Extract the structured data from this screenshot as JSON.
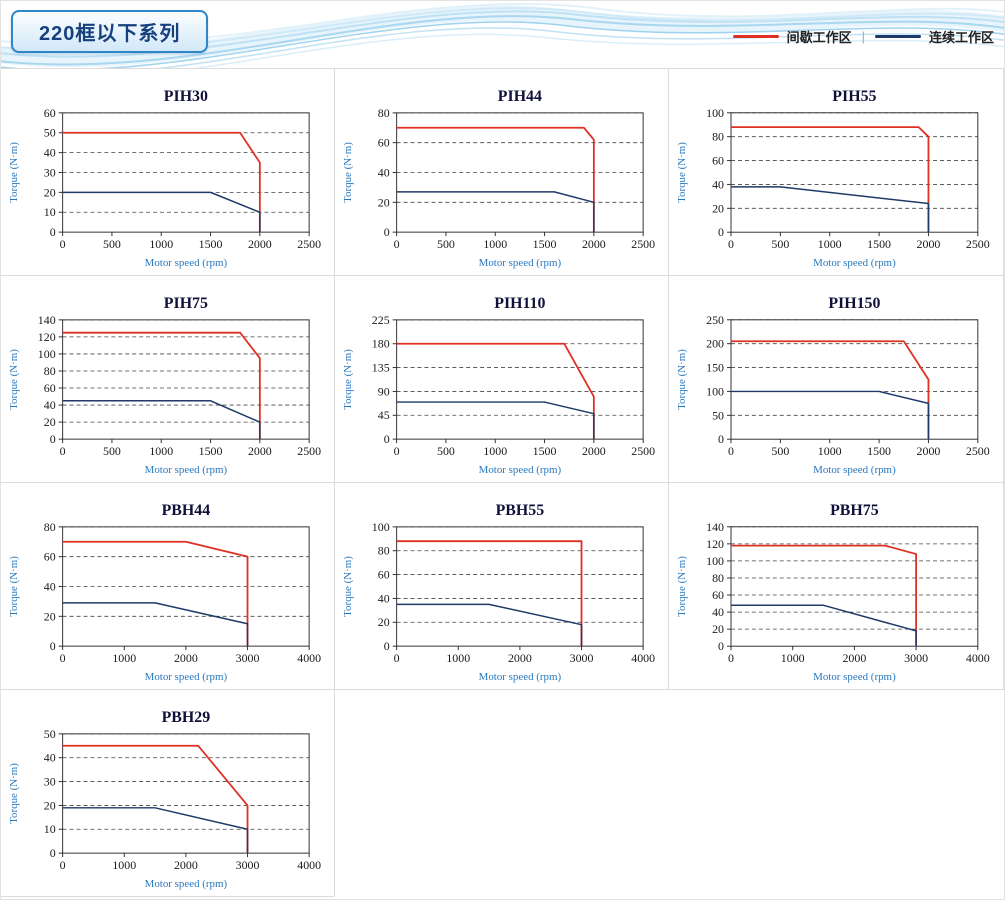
{
  "page": {
    "title": "220框以下系列"
  },
  "legend": {
    "separator": "|",
    "items": [
      {
        "label": "间歇工作区",
        "color_key": "intermittent"
      },
      {
        "label": "连续工作区",
        "color_key": "continuous"
      }
    ]
  },
  "colors": {
    "intermittent": "#e03024",
    "continuous": "#1f3a68"
  },
  "chart_data": [
    {
      "type": "line",
      "title": "PIH30",
      "xlabel": "Motor speed (rpm)",
      "ylabel": "Torque (N·m)",
      "xlim": [
        0,
        2500
      ],
      "xticks": [
        0,
        500,
        1000,
        1500,
        2000,
        2500
      ],
      "ylim": [
        0,
        60
      ],
      "yticks": [
        0,
        10,
        20,
        30,
        40,
        50,
        60
      ],
      "grid": "dashed-horizontal",
      "series": [
        {
          "name": "间歇工作区",
          "color": "intermittent",
          "points": [
            [
              0,
              50
            ],
            [
              1800,
              50
            ],
            [
              2000,
              35
            ],
            [
              2000,
              0
            ]
          ]
        },
        {
          "name": "连续工作区",
          "color": "continuous",
          "points": [
            [
              0,
              20
            ],
            [
              1500,
              20
            ],
            [
              2000,
              10
            ],
            [
              2000,
              0
            ]
          ]
        }
      ]
    },
    {
      "type": "line",
      "title": "PIH44",
      "xlabel": "Motor speed (rpm)",
      "ylabel": "Torque (N·m)",
      "xlim": [
        0,
        2500
      ],
      "xticks": [
        0,
        500,
        1000,
        1500,
        2000,
        2500
      ],
      "ylim": [
        0,
        80
      ],
      "yticks": [
        0,
        20,
        40,
        60,
        80
      ],
      "grid": "dashed-horizontal",
      "series": [
        {
          "name": "间歇工作区",
          "color": "intermittent",
          "points": [
            [
              0,
              70
            ],
            [
              1900,
              70
            ],
            [
              2000,
              62
            ],
            [
              2000,
              0
            ]
          ]
        },
        {
          "name": "连续工作区",
          "color": "continuous",
          "points": [
            [
              0,
              27
            ],
            [
              1600,
              27
            ],
            [
              2000,
              20
            ],
            [
              2000,
              0
            ]
          ]
        }
      ]
    },
    {
      "type": "line",
      "title": "PIH55",
      "xlabel": "Motor speed (rpm)",
      "ylabel": "Torque (N·m)",
      "xlim": [
        0,
        2500
      ],
      "xticks": [
        0,
        500,
        1000,
        1500,
        2000,
        2500
      ],
      "ylim": [
        0,
        100
      ],
      "yticks": [
        0,
        20,
        40,
        60,
        80,
        100
      ],
      "grid": "dashed-horizontal",
      "series": [
        {
          "name": "间歇工作区",
          "color": "intermittent",
          "points": [
            [
              0,
              88
            ],
            [
              1900,
              88
            ],
            [
              2000,
              80
            ],
            [
              2000,
              0
            ]
          ]
        },
        {
          "name": "连续工作区",
          "color": "continuous",
          "points": [
            [
              0,
              38
            ],
            [
              500,
              38
            ],
            [
              2000,
              24
            ],
            [
              2000,
              0
            ]
          ]
        }
      ]
    },
    {
      "type": "line",
      "title": "PIH75",
      "xlabel": "Motor speed (rpm)",
      "ylabel": "Torque (N·m)",
      "xlim": [
        0,
        2500
      ],
      "xticks": [
        0,
        500,
        1000,
        1500,
        2000,
        2500
      ],
      "ylim": [
        0,
        140
      ],
      "yticks": [
        0,
        20,
        40,
        60,
        80,
        100,
        120,
        140
      ],
      "grid": "dashed-horizontal",
      "series": [
        {
          "name": "间歇工作区",
          "color": "intermittent",
          "points": [
            [
              0,
              125
            ],
            [
              1800,
              125
            ],
            [
              2000,
              95
            ],
            [
              2000,
              0
            ]
          ]
        },
        {
          "name": "连续工作区",
          "color": "continuous",
          "points": [
            [
              0,
              45
            ],
            [
              1500,
              45
            ],
            [
              2000,
              20
            ],
            [
              2000,
              0
            ]
          ]
        }
      ]
    },
    {
      "type": "line",
      "title": "PIH110",
      "xlabel": "Motor speed (rpm)",
      "ylabel": "Torque (N·m)",
      "xlim": [
        0,
        2500
      ],
      "xticks": [
        0,
        500,
        1000,
        1500,
        2000,
        2500
      ],
      "ylim": [
        0,
        225
      ],
      "yticks": [
        0,
        45,
        90,
        135,
        180,
        225
      ],
      "grid": "dashed-horizontal",
      "series": [
        {
          "name": "间歇工作区",
          "color": "intermittent",
          "points": [
            [
              0,
              180
            ],
            [
              1700,
              180
            ],
            [
              2000,
              80
            ],
            [
              2000,
              0
            ]
          ]
        },
        {
          "name": "连续工作区",
          "color": "continuous",
          "points": [
            [
              0,
              70
            ],
            [
              1500,
              70
            ],
            [
              2000,
              48
            ],
            [
              2000,
              0
            ]
          ]
        }
      ]
    },
    {
      "type": "line",
      "title": "PIH150",
      "xlabel": "Motor speed (rpm)",
      "ylabel": "Torque (N·m)",
      "xlim": [
        0,
        2500
      ],
      "xticks": [
        0,
        500,
        1000,
        1500,
        2000,
        2500
      ],
      "ylim": [
        0,
        250
      ],
      "yticks": [
        0,
        50,
        100,
        150,
        200,
        250
      ],
      "grid": "dashed-horizontal",
      "series": [
        {
          "name": "间歇工作区",
          "color": "intermittent",
          "points": [
            [
              0,
              205
            ],
            [
              1750,
              205
            ],
            [
              2000,
              125
            ],
            [
              2000,
              0
            ]
          ]
        },
        {
          "name": "连续工作区",
          "color": "continuous",
          "points": [
            [
              0,
              100
            ],
            [
              1500,
              100
            ],
            [
              2000,
              75
            ],
            [
              2000,
              0
            ]
          ]
        }
      ]
    },
    {
      "type": "line",
      "title": "PBH44",
      "xlabel": "Motor speed (rpm)",
      "ylabel": "Torque (N·m)",
      "xlim": [
        0,
        4000
      ],
      "xticks": [
        0,
        1000,
        2000,
        3000,
        4000
      ],
      "ylim": [
        0,
        80
      ],
      "yticks": [
        0,
        20,
        40,
        60,
        80
      ],
      "grid": "dashed-horizontal",
      "series": [
        {
          "name": "间歇工作区",
          "color": "intermittent",
          "points": [
            [
              0,
              70
            ],
            [
              2000,
              70
            ],
            [
              3000,
              60
            ],
            [
              3000,
              0
            ]
          ]
        },
        {
          "name": "连续工作区",
          "color": "continuous",
          "points": [
            [
              0,
              29
            ],
            [
              1500,
              29
            ],
            [
              3000,
              15
            ],
            [
              3000,
              0
            ]
          ]
        }
      ]
    },
    {
      "type": "line",
      "title": "PBH55",
      "xlabel": "Motor speed (rpm)",
      "ylabel": "Torque (N·m)",
      "xlim": [
        0,
        4000
      ],
      "xticks": [
        0,
        1000,
        2000,
        3000,
        4000
      ],
      "ylim": [
        0,
        100
      ],
      "yticks": [
        0,
        20,
        40,
        60,
        80,
        100
      ],
      "grid": "dashed-horizontal",
      "series": [
        {
          "name": "间歇工作区",
          "color": "intermittent",
          "points": [
            [
              0,
              88
            ],
            [
              3000,
              88
            ],
            [
              3000,
              0
            ]
          ]
        },
        {
          "name": "连续工作区",
          "color": "continuous",
          "points": [
            [
              0,
              35
            ],
            [
              1500,
              35
            ],
            [
              3000,
              18
            ],
            [
              3000,
              0
            ]
          ]
        }
      ]
    },
    {
      "type": "line",
      "title": "PBH75",
      "xlabel": "Motor speed (rpm)",
      "ylabel": "Torque (N·m)",
      "xlim": [
        0,
        4000
      ],
      "xticks": [
        0,
        1000,
        2000,
        3000,
        4000
      ],
      "ylim": [
        0,
        140
      ],
      "yticks": [
        0,
        20,
        40,
        60,
        80,
        100,
        120,
        140
      ],
      "grid": "dashed-horizontal",
      "series": [
        {
          "name": "间歇工作区",
          "color": "intermittent",
          "points": [
            [
              0,
              118
            ],
            [
              2500,
              118
            ],
            [
              3000,
              108
            ],
            [
              3000,
              0
            ]
          ]
        },
        {
          "name": "连续工作区",
          "color": "continuous",
          "points": [
            [
              0,
              48
            ],
            [
              1500,
              48
            ],
            [
              3000,
              18
            ],
            [
              3000,
              0
            ]
          ]
        }
      ]
    },
    {
      "type": "line",
      "title": "PBH29",
      "xlabel": "Motor speed (rpm)",
      "ylabel": "Torque (N·m)",
      "xlim": [
        0,
        4000
      ],
      "xticks": [
        0,
        1000,
        2000,
        3000,
        4000
      ],
      "ylim": [
        0,
        50
      ],
      "yticks": [
        0,
        10,
        20,
        30,
        40,
        50
      ],
      "grid": "dashed-horizontal",
      "series": [
        {
          "name": "间歇工作区",
          "color": "intermittent",
          "points": [
            [
              0,
              45
            ],
            [
              2200,
              45
            ],
            [
              3000,
              20
            ],
            [
              3000,
              0
            ]
          ]
        },
        {
          "name": "连续工作区",
          "color": "continuous",
          "points": [
            [
              0,
              19
            ],
            [
              1500,
              19
            ],
            [
              3000,
              10
            ],
            [
              3000,
              0
            ]
          ]
        }
      ]
    }
  ]
}
